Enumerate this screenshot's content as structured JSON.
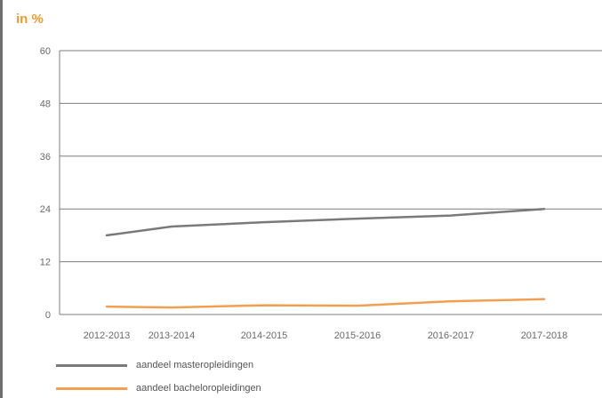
{
  "chart_data": {
    "type": "line",
    "unit_label": "in %",
    "categories": [
      "2012-2013",
      "2013-2014",
      "2014-2015",
      "2015-2016",
      "2016-2017",
      "2017-2018"
    ],
    "ylim": [
      0,
      60
    ],
    "yticks": [
      "0",
      "12",
      "24",
      "36",
      "48",
      "60"
    ],
    "grid": true,
    "legend_position": "bottom-left",
    "series": [
      {
        "name": "aandeel masteropleidingen",
        "color": "#7a7a7a",
        "values": [
          18.0,
          20.0,
          21.0,
          21.8,
          22.5,
          24.0
        ]
      },
      {
        "name": "aandeel bacheloropleidingen",
        "color": "#f0a050",
        "values": [
          1.8,
          1.6,
          2.1,
          2.0,
          3.0,
          3.5
        ]
      }
    ]
  }
}
